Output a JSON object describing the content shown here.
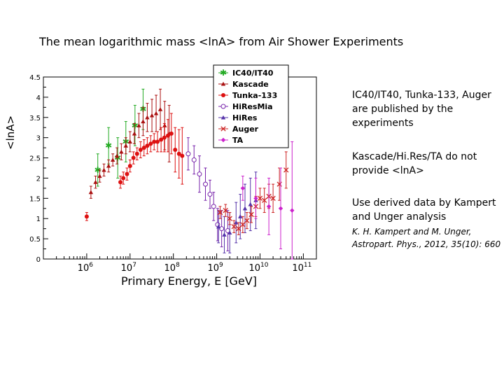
{
  "slide": {
    "title": "The mean logarithmic mass <lnA> from Air Shower Experiments",
    "notes": [
      "IC40/IT40, Tunka-133, Auger are published by the experiments",
      "Kascade/Hi.Res/TA do not provide <lnA>",
      "Use derived data by Kampert and Unger analysis"
    ],
    "reference": "K. H. Kampert and M. Unger, Astropart. Phys., 2012, 35(10): 660"
  },
  "chart_data": {
    "type": "scatter",
    "xlabel": "Primary Energy, E [GeV]",
    "ylabel": "<lnA>",
    "x_scale": "log",
    "xlim": [
      100000,
      200000000000
    ],
    "ylim": [
      0,
      4.5
    ],
    "x_ticks": [
      {
        "value": 1000000,
        "base": "10",
        "exp": "6"
      },
      {
        "value": 10000000,
        "base": "10",
        "exp": "7"
      },
      {
        "value": 100000000,
        "base": "10",
        "exp": "8"
      },
      {
        "value": 1000000000,
        "base": "10",
        "exp": "9"
      },
      {
        "value": 10000000000,
        "base": "10",
        "exp": "10"
      },
      {
        "value": 100000000000,
        "base": "10",
        "exp": "11"
      }
    ],
    "y_ticks": [
      "0",
      "0.5",
      "1",
      "1.5",
      "2",
      "2.5",
      "3",
      "3.5",
      "4",
      "4.5"
    ],
    "legend_position": "top-center",
    "series": [
      {
        "name": "IC40/IT40",
        "color": "#22aa22",
        "marker": "star",
        "points": [
          [
            1800000,
            2.2,
            0.4
          ],
          [
            3200000,
            2.8,
            0.45
          ],
          [
            5200000,
            2.5,
            0.5
          ],
          [
            8000000,
            2.9,
            0.5
          ],
          [
            13000000,
            3.3,
            0.5
          ],
          [
            20000000,
            3.7,
            0.5
          ]
        ]
      },
      {
        "name": "Kascade",
        "color": "#aa1111",
        "marker": "triangle",
        "points": [
          [
            1250000,
            1.65,
            0.15
          ],
          [
            1600000,
            1.9,
            0.15
          ],
          [
            2000000,
            2.05,
            0.15
          ],
          [
            2500000,
            2.2,
            0.15
          ],
          [
            3200000,
            2.3,
            0.15
          ],
          [
            4000000,
            2.45,
            0.15
          ],
          [
            5000000,
            2.55,
            0.2
          ],
          [
            6300000,
            2.65,
            0.2
          ],
          [
            8000000,
            2.8,
            0.2
          ],
          [
            10000000,
            2.9,
            0.25
          ],
          [
            12600000,
            3.1,
            0.25
          ],
          [
            16000000,
            3.3,
            0.3
          ],
          [
            20000000,
            3.4,
            0.35
          ],
          [
            25000000,
            3.5,
            0.35
          ],
          [
            32000000,
            3.55,
            0.4
          ],
          [
            40000000,
            3.6,
            0.45
          ],
          [
            50000000,
            3.7,
            0.5
          ],
          [
            63000000,
            3.3,
            0.6
          ],
          [
            80000000,
            3.1,
            0.7
          ]
        ]
      },
      {
        "name": "Tunka-133",
        "color": "#dd1111",
        "marker": "circle",
        "points": [
          [
            1000000,
            1.05,
            0.1
          ],
          [
            6000000,
            1.9,
            0.15
          ],
          [
            7000000,
            2.0,
            0.15
          ],
          [
            8500000,
            2.1,
            0.15
          ],
          [
            10000000,
            2.3,
            0.15
          ],
          [
            12000000,
            2.5,
            0.15
          ],
          [
            14500000,
            2.6,
            0.15
          ],
          [
            17500000,
            2.7,
            0.2
          ],
          [
            21000000,
            2.75,
            0.2
          ],
          [
            25000000,
            2.8,
            0.2
          ],
          [
            30000000,
            2.85,
            0.2
          ],
          [
            36000000,
            2.9,
            0.2
          ],
          [
            43000000,
            2.9,
            0.25
          ],
          [
            52000000,
            2.95,
            0.3
          ],
          [
            62000000,
            3.0,
            0.35
          ],
          [
            75000000,
            3.05,
            0.4
          ],
          [
            90000000,
            3.1,
            0.5
          ],
          [
            110000000,
            2.7,
            0.55
          ],
          [
            135000000,
            2.6,
            0.6
          ],
          [
            160000000,
            2.55,
            0.7
          ]
        ]
      },
      {
        "name": "HiResMia",
        "color": "#7722aa",
        "marker": "open-circle",
        "points": [
          [
            220000000,
            2.6,
            0.4
          ],
          [
            300000000,
            2.45,
            0.35
          ],
          [
            400000000,
            2.1,
            0.45
          ],
          [
            550000000,
            1.85,
            0.4
          ],
          [
            700000000,
            1.6,
            0.35
          ],
          [
            850000000,
            1.3,
            0.35
          ],
          [
            1050000000,
            0.85,
            0.4
          ],
          [
            1300000000,
            0.75,
            0.45
          ],
          [
            1800000000,
            0.7,
            0.5
          ]
        ]
      },
      {
        "name": "HiRes",
        "color": "#5533aa",
        "marker": "filled-triangle",
        "points": [
          [
            1100000000,
            0.8,
            0.4
          ],
          [
            1500000000,
            0.6,
            0.45
          ],
          [
            2000000000,
            0.65,
            0.5
          ],
          [
            2800000000,
            0.9,
            0.5
          ],
          [
            3500000000,
            1.05,
            0.55
          ],
          [
            4500000000,
            1.25,
            0.6
          ],
          [
            6000000000,
            1.35,
            0.65
          ],
          [
            8000000000,
            1.45,
            0.7
          ]
        ]
      },
      {
        "name": "Auger",
        "color": "#cc2222",
        "marker": "x",
        "points": [
          [
            1200000000,
            1.15,
            0.15
          ],
          [
            1600000000,
            1.2,
            0.15
          ],
          [
            2000000000,
            1.0,
            0.15
          ],
          [
            2500000000,
            0.8,
            0.15
          ],
          [
            3200000000,
            0.75,
            0.15
          ],
          [
            4000000000,
            0.85,
            0.2
          ],
          [
            5000000000,
            0.95,
            0.2
          ],
          [
            6300000000,
            1.1,
            0.2
          ],
          [
            8000000000,
            1.3,
            0.25
          ],
          [
            10000000000,
            1.5,
            0.25
          ],
          [
            12600000000,
            1.45,
            0.3
          ],
          [
            16000000000,
            1.55,
            0.3
          ],
          [
            20000000000,
            1.5,
            0.35
          ],
          [
            28000000000,
            1.85,
            0.4
          ],
          [
            40000000000,
            2.2,
            0.45
          ]
        ]
      },
      {
        "name": "TA",
        "color": "#cc22cc",
        "marker": "diamond",
        "points": [
          [
            4000000000,
            1.75,
            0.3
          ],
          [
            8000000000,
            1.5,
            0.5
          ],
          [
            16000000000,
            1.3,
            0.7
          ],
          [
            30000000000,
            1.25,
            1.0
          ],
          [
            55000000000,
            1.2,
            1.7
          ]
        ]
      }
    ]
  }
}
